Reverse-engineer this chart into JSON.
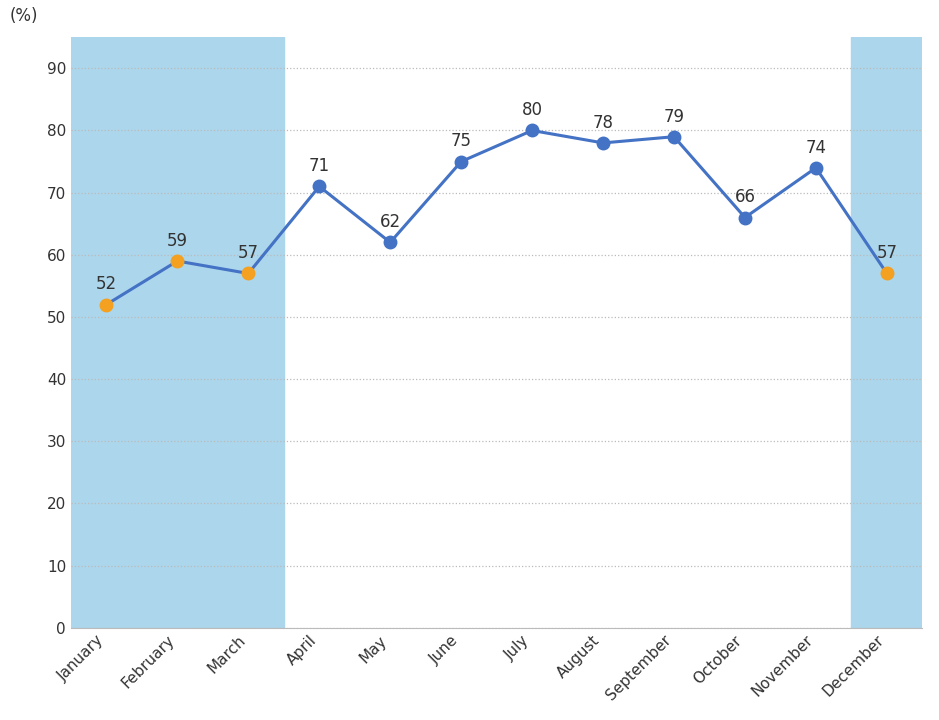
{
  "months": [
    "January",
    "February",
    "March",
    "April",
    "May",
    "June",
    "July",
    "August",
    "September",
    "October",
    "November",
    "December"
  ],
  "values": [
    52,
    59,
    57,
    71,
    62,
    75,
    80,
    78,
    79,
    66,
    74,
    57
  ],
  "dry_months_indices": [
    0,
    1,
    2,
    11
  ],
  "line_color": "#4472C4",
  "dry_marker_color": "#F4A020",
  "normal_marker_color": "#4472C4",
  "dry_bg_color": "#ACD6EC",
  "normal_bg_color": "#FFFFFF",
  "figure_bg_color": "#FFFFFF",
  "ylabel": "(%)",
  "ylim": [
    0,
    95
  ],
  "yticks": [
    0,
    10,
    20,
    30,
    40,
    50,
    60,
    70,
    80,
    90
  ],
  "grid_color": "#BBBBBB",
  "label_fontsize": 12,
  "tick_fontsize": 11,
  "annotation_fontsize": 12,
  "marker_size": 9,
  "line_width": 2.2
}
